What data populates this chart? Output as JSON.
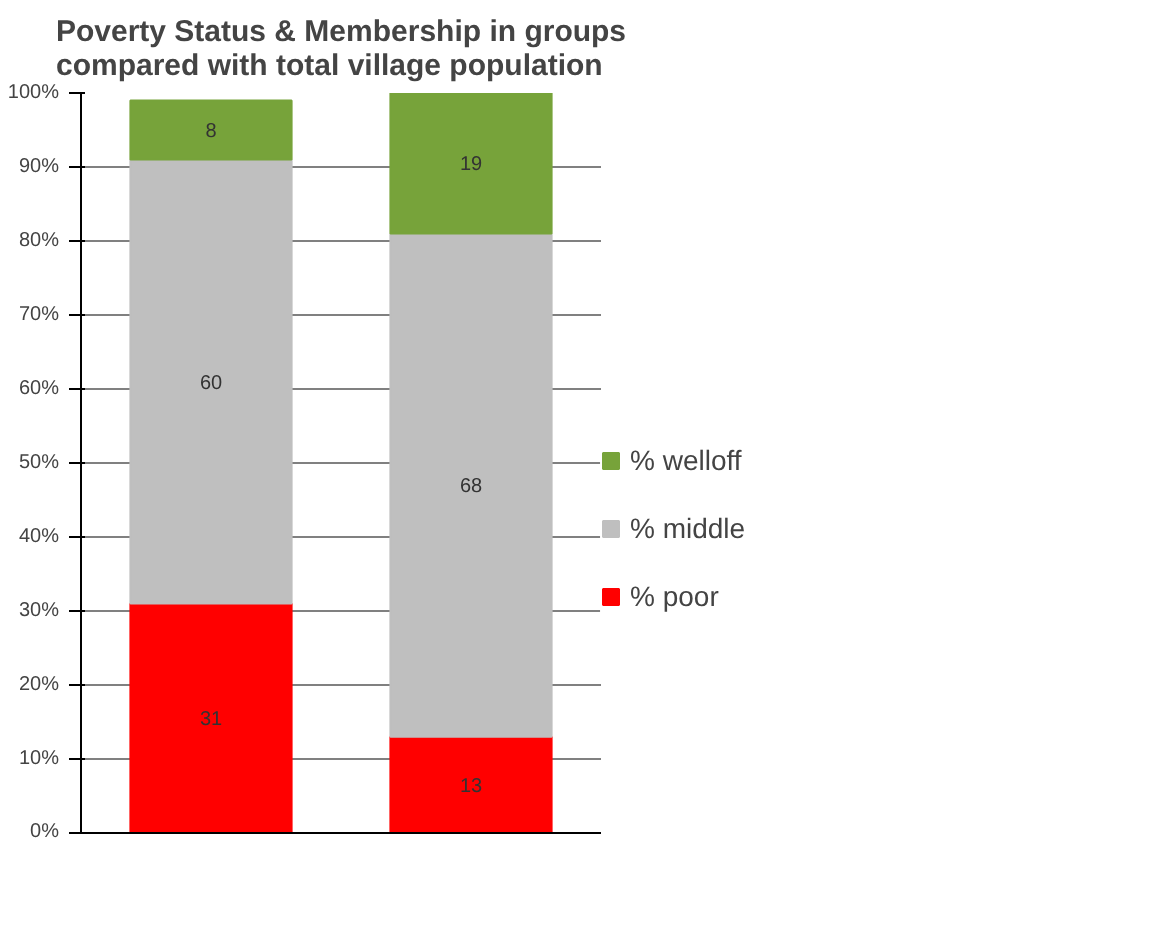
{
  "chart_data": {
    "type": "bar",
    "title": "Poverty Status & Membership in groups\ncompared with total village population",
    "categories": [
      null,
      null
    ],
    "stacked": true,
    "data_labels": true,
    "grid": "y",
    "legend": "right",
    "ylim": [
      0,
      100
    ],
    "yticks": [
      {
        "value": 0,
        "label": "0%"
      },
      {
        "value": 10,
        "label": "10%"
      },
      {
        "value": 20,
        "label": "20%"
      },
      {
        "value": 30,
        "label": "30%"
      },
      {
        "value": 40,
        "label": "40%"
      },
      {
        "value": 50,
        "label": "50%"
      },
      {
        "value": 60,
        "label": "60%"
      },
      {
        "value": 70,
        "label": "70%"
      },
      {
        "value": 80,
        "label": "80%"
      },
      {
        "value": 90,
        "label": "90%"
      },
      {
        "value": 100,
        "label": "100%"
      }
    ],
    "series": [
      {
        "name": "% poor",
        "color": "#ff0000",
        "values": [
          31,
          13
        ]
      },
      {
        "name": "% middle",
        "color": "#bfbfbf",
        "values": [
          60,
          68
        ]
      },
      {
        "name": "% welloff",
        "color": "#77a33a",
        "values": [
          8,
          19
        ]
      }
    ]
  }
}
